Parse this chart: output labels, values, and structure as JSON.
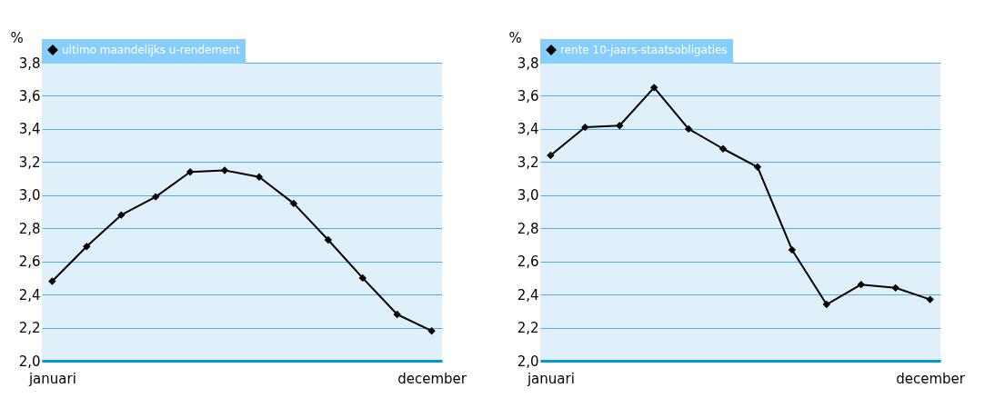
{
  "chart_data": [
    {
      "type": "line",
      "ylabel": "%",
      "categories": [
        "januari",
        null,
        null,
        null,
        null,
        null,
        null,
        null,
        null,
        null,
        null,
        "december"
      ],
      "series": [
        {
          "name": "ultimo maandelijks u-rendement",
          "color": "#000000",
          "values": [
            2.48,
            2.69,
            2.88,
            2.99,
            3.14,
            3.15,
            3.11,
            2.95,
            2.73,
            2.5,
            2.28,
            2.18
          ]
        }
      ],
      "ylim": [
        2.0,
        3.8
      ],
      "yticks": [
        {
          "value": 2.0,
          "label": "2,0"
        },
        {
          "value": 2.2,
          "label": "2,2"
        },
        {
          "value": 2.4,
          "label": "2,4"
        },
        {
          "value": 2.6,
          "label": "2,6"
        },
        {
          "value": 2.8,
          "label": "2,8"
        },
        {
          "value": 3.0,
          "label": "3,0"
        },
        {
          "value": 3.2,
          "label": "3,2"
        },
        {
          "value": 3.4,
          "label": "3,4"
        },
        {
          "value": 3.6,
          "label": "3,6"
        },
        {
          "value": 3.8,
          "label": "3,8"
        }
      ],
      "grid": "y",
      "legend": "top left",
      "marker": "diamond",
      "line_style": "solid"
    },
    {
      "type": "line",
      "ylabel": "%",
      "categories": [
        "januari",
        null,
        null,
        null,
        null,
        null,
        null,
        null,
        null,
        null,
        null,
        "december"
      ],
      "series": [
        {
          "name": "rente 10-jaars-staatsobligaties",
          "color": "#000000",
          "values": [
            3.24,
            3.41,
            3.42,
            3.65,
            3.4,
            3.28,
            3.17,
            2.67,
            2.34,
            2.46,
            2.44,
            2.37
          ]
        }
      ],
      "ylim": [
        2.0,
        3.8
      ],
      "yticks": [
        {
          "value": 2.0,
          "label": "2,0"
        },
        {
          "value": 2.2,
          "label": "2,2"
        },
        {
          "value": 2.4,
          "label": "2,4"
        },
        {
          "value": 2.6,
          "label": "2,6"
        },
        {
          "value": 2.8,
          "label": "2,8"
        },
        {
          "value": 3.0,
          "label": "3,0"
        },
        {
          "value": 3.2,
          "label": "3,2"
        },
        {
          "value": 3.4,
          "label": "3,4"
        },
        {
          "value": 3.6,
          "label": "3,6"
        },
        {
          "value": 3.8,
          "label": "3,8"
        }
      ],
      "grid": "y",
      "legend": "top left",
      "marker": "diamond",
      "line_style": "solid"
    }
  ]
}
